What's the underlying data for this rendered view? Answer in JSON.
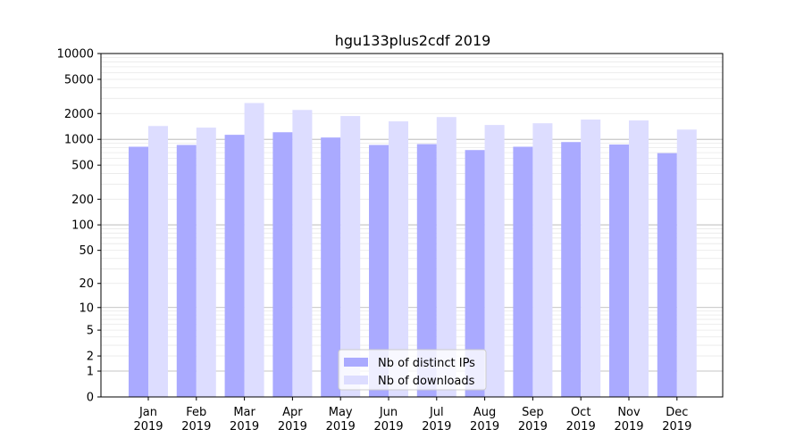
{
  "chart_data": {
    "type": "bar",
    "title": "hgu133plus2cdf 2019",
    "xlabel": "",
    "ylabel": "",
    "y_scale": "log1p",
    "ylim": [
      0,
      10000
    ],
    "y_ticks": [
      0,
      1,
      2,
      5,
      10,
      20,
      50,
      100,
      200,
      500,
      1000,
      2000,
      5000,
      10000
    ],
    "categories": [
      [
        "Jan",
        "2019"
      ],
      [
        "Feb",
        "2019"
      ],
      [
        "Mar",
        "2019"
      ],
      [
        "Apr",
        "2019"
      ],
      [
        "May",
        "2019"
      ],
      [
        "Jun",
        "2019"
      ],
      [
        "Jul",
        "2019"
      ],
      [
        "Aug",
        "2019"
      ],
      [
        "Sep",
        "2019"
      ],
      [
        "Oct",
        "2019"
      ],
      [
        "Nov",
        "2019"
      ],
      [
        "Dec",
        "2019"
      ]
    ],
    "series": [
      {
        "name": "Nb of distinct IPs",
        "color": "#aaaaff",
        "values": [
          820,
          860,
          1130,
          1210,
          1050,
          860,
          880,
          750,
          820,
          930,
          870,
          690
        ]
      },
      {
        "name": "Nb of downloads",
        "color": "#ddddff",
        "values": [
          1430,
          1370,
          2650,
          2200,
          1870,
          1620,
          1820,
          1470,
          1540,
          1700,
          1660,
          1300
        ]
      }
    ],
    "grid": true,
    "legend": "lower-center"
  }
}
